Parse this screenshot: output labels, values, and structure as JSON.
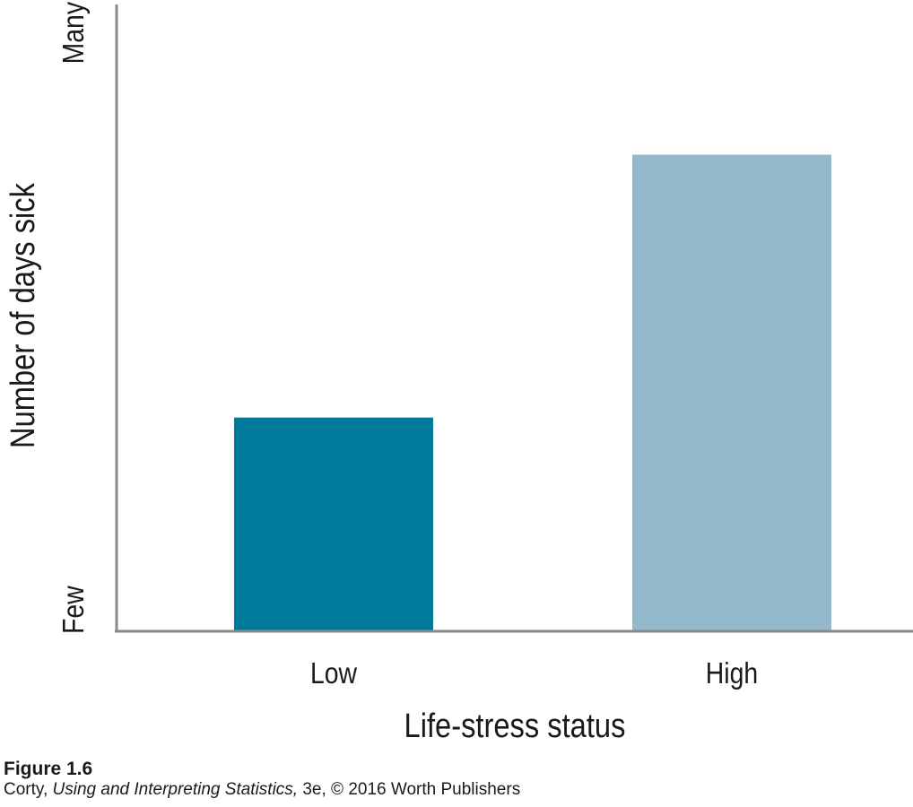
{
  "chart_data": {
    "type": "bar",
    "title": "",
    "categories": [
      "Low",
      "High"
    ],
    "values": [
      0.34,
      0.76
    ],
    "colors": [
      "#007a9a",
      "#94b8cc"
    ],
    "xlabel": "Life-stress status",
    "ylabel": "Number of days sick",
    "ylim": [
      0,
      1
    ],
    "y_tick_labels": [
      "Few",
      "Many"
    ],
    "grid": false,
    "legend": "none",
    "axis_color": "#8a8a8a"
  },
  "caption": {
    "figure_label": "Figure 1.6",
    "author": "Corty,",
    "book_title": "Using and Interpreting Statistics,",
    "rest": "3e, © 2016 Worth Publishers"
  }
}
